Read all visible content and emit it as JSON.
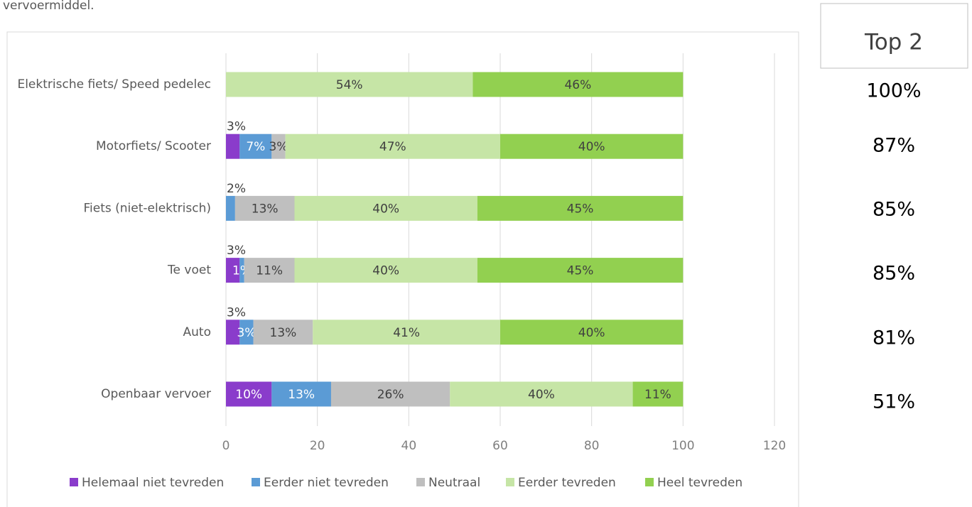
{
  "intro": "vervoermiddel.",
  "chart_data": {
    "type": "stacked_barh",
    "categories": [
      "Elektrische fiets/ Speed pedelec",
      "Motorfiets/ Scooter",
      "Fiets (niet-elektrisch)",
      "Te voet",
      "Auto",
      "Openbaar vervoer"
    ],
    "series": [
      {
        "name": "Helemaal niet tevreden",
        "color": "#8a3ccb",
        "values": [
          0,
          3,
          0,
          3,
          3,
          10
        ],
        "value_labels": [
          null,
          "3%",
          null,
          "3%",
          "3%",
          "10%"
        ]
      },
      {
        "name": "Eerder niet tevreden",
        "color": "#5b9bd5",
        "values": [
          0,
          7,
          2,
          1,
          3,
          13
        ],
        "value_labels": [
          null,
          "7%",
          "2%",
          "1%",
          "3%",
          "13%"
        ]
      },
      {
        "name": "Neutraal",
        "color": "#bfbfbf",
        "values": [
          0,
          3,
          13,
          11,
          13,
          26
        ],
        "value_labels": [
          null,
          "3%",
          "13%",
          "11%",
          "13%",
          "26%"
        ]
      },
      {
        "name": "Eerder tevreden",
        "color": "#c6e5a6",
        "values": [
          54,
          47,
          40,
          40,
          41,
          40
        ],
        "value_labels": [
          "54%",
          "47%",
          "40%",
          "40%",
          "41%",
          "40%"
        ]
      },
      {
        "name": "Heel tevreden",
        "color": "#92d050",
        "values": [
          46,
          40,
          45,
          45,
          40,
          11
        ],
        "value_labels": [
          "46%",
          "40%",
          "45%",
          "45%",
          "40%",
          "11%"
        ]
      }
    ],
    "xlim": [
      0,
      120
    ],
    "xticks": [
      0,
      20,
      40,
      60,
      80,
      100,
      120
    ],
    "grid": true,
    "legend": "bottom",
    "top2": {
      "title": "Top 2",
      "labels": [
        "100%",
        "87%",
        "85%",
        "85%",
        "81%",
        "51%"
      ]
    }
  }
}
